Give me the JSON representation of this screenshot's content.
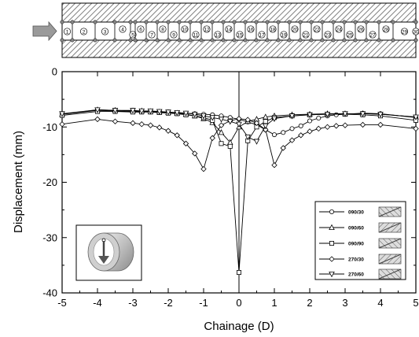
{
  "chart_data": {
    "type": "line",
    "xlabel": "Chainage (D)",
    "ylabel": "Displacement (mm)",
    "xlim": [
      -5,
      5
    ],
    "ylim": [
      -40,
      0
    ],
    "xticks": [
      "-5",
      "-4",
      "-3",
      "-2",
      "-1",
      "0",
      "1",
      "2",
      "3",
      "4",
      "5"
    ],
    "yticks": [
      "0",
      "-10",
      "-20",
      "-30",
      "-40"
    ],
    "series": [
      {
        "name": "090/30",
        "marker": "circle",
        "x": [
          -5,
          -4,
          -3.5,
          -3,
          -2.75,
          -2.5,
          -2.25,
          -2,
          -1.75,
          -1.5,
          -1.25,
          -1,
          -0.75,
          -0.5,
          -0.25,
          0,
          0.25,
          0.5,
          0.75,
          1,
          1.25,
          1.5,
          1.75,
          2,
          2.25,
          2.5,
          2.75,
          3,
          3.5,
          4,
          5
        ],
        "y": [
          -7.7,
          -7.0,
          -7.1,
          -7.2,
          -7.2,
          -7.3,
          -7.3,
          -7.4,
          -7.4,
          -7.5,
          -7.6,
          -7.7,
          -7.8,
          -8.0,
          -8.3,
          -8.6,
          -9.1,
          -9.6,
          -10.5,
          -11.4,
          -11.0,
          -10.3,
          -9.8,
          -8.9,
          -8.4,
          -8.0,
          -7.8,
          -7.7,
          -7.5,
          -7.6,
          -8.3
        ]
      },
      {
        "name": "090/60",
        "marker": "triangle-up",
        "x": [
          -5,
          -4,
          -3.5,
          -3,
          -2.75,
          -2.5,
          -2.25,
          -2,
          -1.75,
          -1.5,
          -1.25,
          -1,
          -0.75,
          -0.5,
          -0.25,
          0,
          0.25,
          0.5,
          0.75,
          1,
          1.5,
          2,
          2.5,
          3,
          3.5,
          4,
          5
        ],
        "y": [
          -7.7,
          -6.9,
          -7.0,
          -7.1,
          -7.1,
          -7.2,
          -7.3,
          -7.4,
          -7.5,
          -7.7,
          -8.0,
          -8.5,
          -9.2,
          -11.0,
          -12.8,
          -10.0,
          -9.0,
          -8.6,
          -8.2,
          -8.0,
          -7.8,
          -7.7,
          -7.6,
          -7.6,
          -7.6,
          -7.7,
          -8.2
        ]
      },
      {
        "name": "090/90",
        "marker": "square",
        "x": [
          -5,
          -4,
          -3.5,
          -3,
          -2.75,
          -2.5,
          -2.25,
          -2,
          -1.75,
          -1.5,
          -1.25,
          -1,
          -0.75,
          -0.5,
          -0.25,
          0,
          0.25,
          0.5,
          0.75,
          1,
          1.5,
          2,
          2.5,
          3,
          3.5,
          4,
          5
        ],
        "y": [
          -7.9,
          -7.2,
          -7.2,
          -7.3,
          -7.3,
          -7.3,
          -7.4,
          -7.5,
          -7.6,
          -7.8,
          -8.0,
          -8.3,
          -8.8,
          -13.0,
          -13.5,
          -36.3,
          -12.5,
          -10.0,
          -9.0,
          -8.3,
          -8.0,
          -7.8,
          -7.7,
          -7.7,
          -7.8,
          -8.0,
          -8.8
        ]
      },
      {
        "name": "270/30",
        "marker": "diamond",
        "x": [
          -5,
          -4,
          -3.5,
          -3,
          -2.75,
          -2.5,
          -2.25,
          -2,
          -1.75,
          -1.5,
          -1.25,
          -1,
          -0.75,
          -0.5,
          -0.25,
          0,
          0.25,
          0.5,
          0.75,
          1,
          1.25,
          1.5,
          1.75,
          2,
          2.25,
          2.5,
          2.75,
          3,
          3.5,
          4,
          5
        ],
        "y": [
          -9.5,
          -8.6,
          -9.0,
          -9.3,
          -9.5,
          -9.7,
          -10.1,
          -10.7,
          -11.5,
          -13.0,
          -14.8,
          -17.6,
          -12.0,
          -9.7,
          -8.9,
          -8.5,
          -8.7,
          -9.3,
          -10.5,
          -16.9,
          -13.8,
          -12.4,
          -11.5,
          -10.8,
          -10.3,
          -10.0,
          -9.8,
          -9.7,
          -9.6,
          -9.6,
          -10.3
        ]
      },
      {
        "name": "270/60",
        "marker": "triangle-down",
        "x": [
          -5,
          -4,
          -3.5,
          -3,
          -2.75,
          -2.5,
          -2.25,
          -2,
          -1.75,
          -1.5,
          -1.25,
          -1,
          -0.75,
          -0.5,
          -0.25,
          0,
          0.25,
          0.5,
          0.75,
          1,
          1.5,
          2,
          2.5,
          3,
          3.5,
          4,
          5
        ],
        "y": [
          -7.6,
          -6.9,
          -7.0,
          -7.0,
          -7.1,
          -7.1,
          -7.2,
          -7.3,
          -7.4,
          -7.5,
          -7.7,
          -8.0,
          -8.3,
          -8.6,
          -9.0,
          -9.5,
          -11.8,
          -12.6,
          -9.8,
          -8.5,
          -8.0,
          -7.8,
          -7.7,
          -7.6,
          -7.6,
          -7.7,
          -8.2
        ]
      }
    ],
    "legend_position": "bottom-right",
    "grid": false,
    "vertical_reference_line_x": 0
  },
  "tunnel_diagram": {
    "segments": [
      "1",
      "2",
      "3",
      "4",
      "5",
      "6",
      "7",
      "8",
      "9",
      "10",
      "11",
      "12",
      "13",
      "14",
      "15",
      "16",
      "17",
      "18",
      "19",
      "20",
      "21",
      "22",
      "23",
      "24",
      "25",
      "26",
      "27",
      "28",
      "29",
      "30"
    ],
    "arrow_color": "#888888",
    "hatch_color": "#808080"
  },
  "inset_icon": "rotating-tunnel-cylinder-icon"
}
